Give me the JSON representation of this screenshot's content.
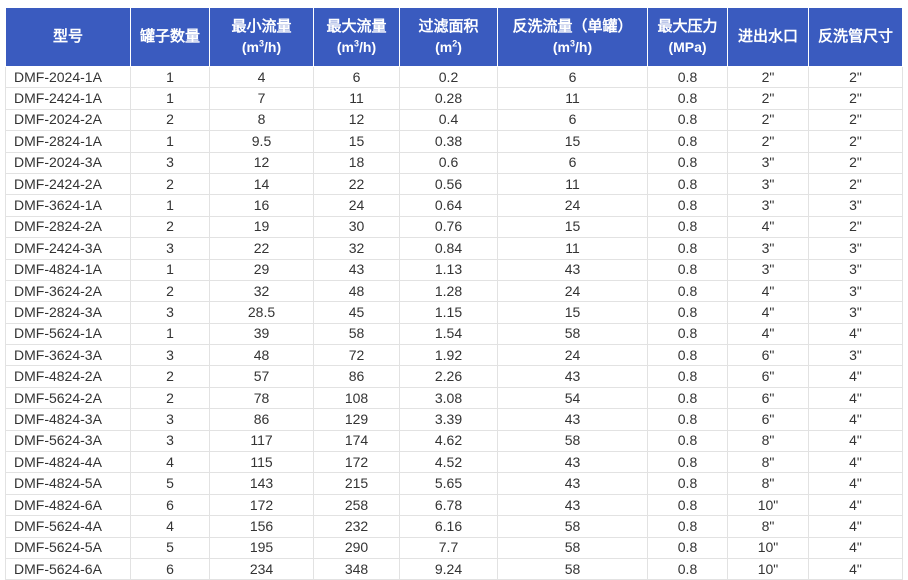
{
  "header_color": "#3a5bbf",
  "headers": [
    {
      "label": "型号",
      "unit_pre": "",
      "unit_sup": "",
      "unit_post": ""
    },
    {
      "label": "罐子数量",
      "unit_pre": "",
      "unit_sup": "",
      "unit_post": ""
    },
    {
      "label": "最小流量",
      "unit_pre": "(m",
      "unit_sup": "3",
      "unit_post": "/h)"
    },
    {
      "label": "最大流量",
      "unit_pre": "(m",
      "unit_sup": "3",
      "unit_post": "/h)"
    },
    {
      "label": "过滤面积",
      "unit_pre": "(m",
      "unit_sup": "2",
      "unit_post": ")"
    },
    {
      "label": "反洗流量（单罐）",
      "unit_pre": "(m",
      "unit_sup": "3",
      "unit_post": "/h)"
    },
    {
      "label": "最大压力",
      "unit_pre": "(MPa)",
      "unit_sup": "",
      "unit_post": ""
    },
    {
      "label": "进出水口",
      "unit_pre": "",
      "unit_sup": "",
      "unit_post": ""
    },
    {
      "label": "反洗管尺寸",
      "unit_pre": "",
      "unit_sup": "",
      "unit_post": ""
    }
  ],
  "rows": [
    [
      "DMF-2024-1A",
      "1",
      "4",
      "6",
      "0.2",
      "6",
      "0.8",
      "2\"",
      "2\""
    ],
    [
      "DMF-2424-1A",
      "1",
      "7",
      "11",
      "0.28",
      "11",
      "0.8",
      "2\"",
      "2\""
    ],
    [
      "DMF-2024-2A",
      "2",
      "8",
      "12",
      "0.4",
      "6",
      "0.8",
      "2\"",
      "2\""
    ],
    [
      "DMF-2824-1A",
      "1",
      "9.5",
      "15",
      "0.38",
      "15",
      "0.8",
      "2\"",
      "2\""
    ],
    [
      "DMF-2024-3A",
      "3",
      "12",
      "18",
      "0.6",
      "6",
      "0.8",
      "3\"",
      "2\""
    ],
    [
      "DMF-2424-2A",
      "2",
      "14",
      "22",
      "0.56",
      "11",
      "0.8",
      "3\"",
      "2\""
    ],
    [
      "DMF-3624-1A",
      "1",
      "16",
      "24",
      "0.64",
      "24",
      "0.8",
      "3\"",
      "3\""
    ],
    [
      "DMF-2824-2A",
      "2",
      "19",
      "30",
      "0.76",
      "15",
      "0.8",
      "4\"",
      "2\""
    ],
    [
      "DMF-2424-3A",
      "3",
      "22",
      "32",
      "0.84",
      "11",
      "0.8",
      "3\"",
      "3\""
    ],
    [
      "DMF-4824-1A",
      "1",
      "29",
      "43",
      "1.13",
      "43",
      "0.8",
      "3\"",
      "3\""
    ],
    [
      "DMF-3624-2A",
      "2",
      "32",
      "48",
      "1.28",
      "24",
      "0.8",
      "4\"",
      "3\""
    ],
    [
      "DMF-2824-3A",
      "3",
      "28.5",
      "45",
      "1.15",
      "15",
      "0.8",
      "4\"",
      "3\""
    ],
    [
      "DMF-5624-1A",
      "1",
      "39",
      "58",
      "1.54",
      "58",
      "0.8",
      "4\"",
      "4\""
    ],
    [
      "DMF-3624-3A",
      "3",
      "48",
      "72",
      "1.92",
      "24",
      "0.8",
      "6\"",
      "3\""
    ],
    [
      "DMF-4824-2A",
      "2",
      "57",
      "86",
      "2.26",
      "43",
      "0.8",
      "6\"",
      "4\""
    ],
    [
      "DMF-5624-2A",
      "2",
      "78",
      "108",
      "3.08",
      "54",
      "0.8",
      "6\"",
      "4\""
    ],
    [
      "DMF-4824-3A",
      "3",
      "86",
      "129",
      "3.39",
      "43",
      "0.8",
      "6\"",
      "4\""
    ],
    [
      "DMF-5624-3A",
      "3",
      "117",
      "174",
      "4.62",
      "58",
      "0.8",
      "8\"",
      "4\""
    ],
    [
      "DMF-4824-4A",
      "4",
      "115",
      "172",
      "4.52",
      "43",
      "0.8",
      "8\"",
      "4\""
    ],
    [
      "DMF-4824-5A",
      "5",
      "143",
      "215",
      "5.65",
      "43",
      "0.8",
      "8\"",
      "4\""
    ],
    [
      "DMF-4824-6A",
      "6",
      "172",
      "258",
      "6.78",
      "43",
      "0.8",
      "10\"",
      "4\""
    ],
    [
      "DMF-5624-4A",
      "4",
      "156",
      "232",
      "6.16",
      "58",
      "0.8",
      "8\"",
      "4\""
    ],
    [
      "DMF-5624-5A",
      "5",
      "195",
      "290",
      "7.7",
      "58",
      "0.8",
      "10\"",
      "4\""
    ],
    [
      "DMF-5624-6A",
      "6",
      "234",
      "348",
      "9.24",
      "58",
      "0.8",
      "10\"",
      "4\""
    ]
  ]
}
